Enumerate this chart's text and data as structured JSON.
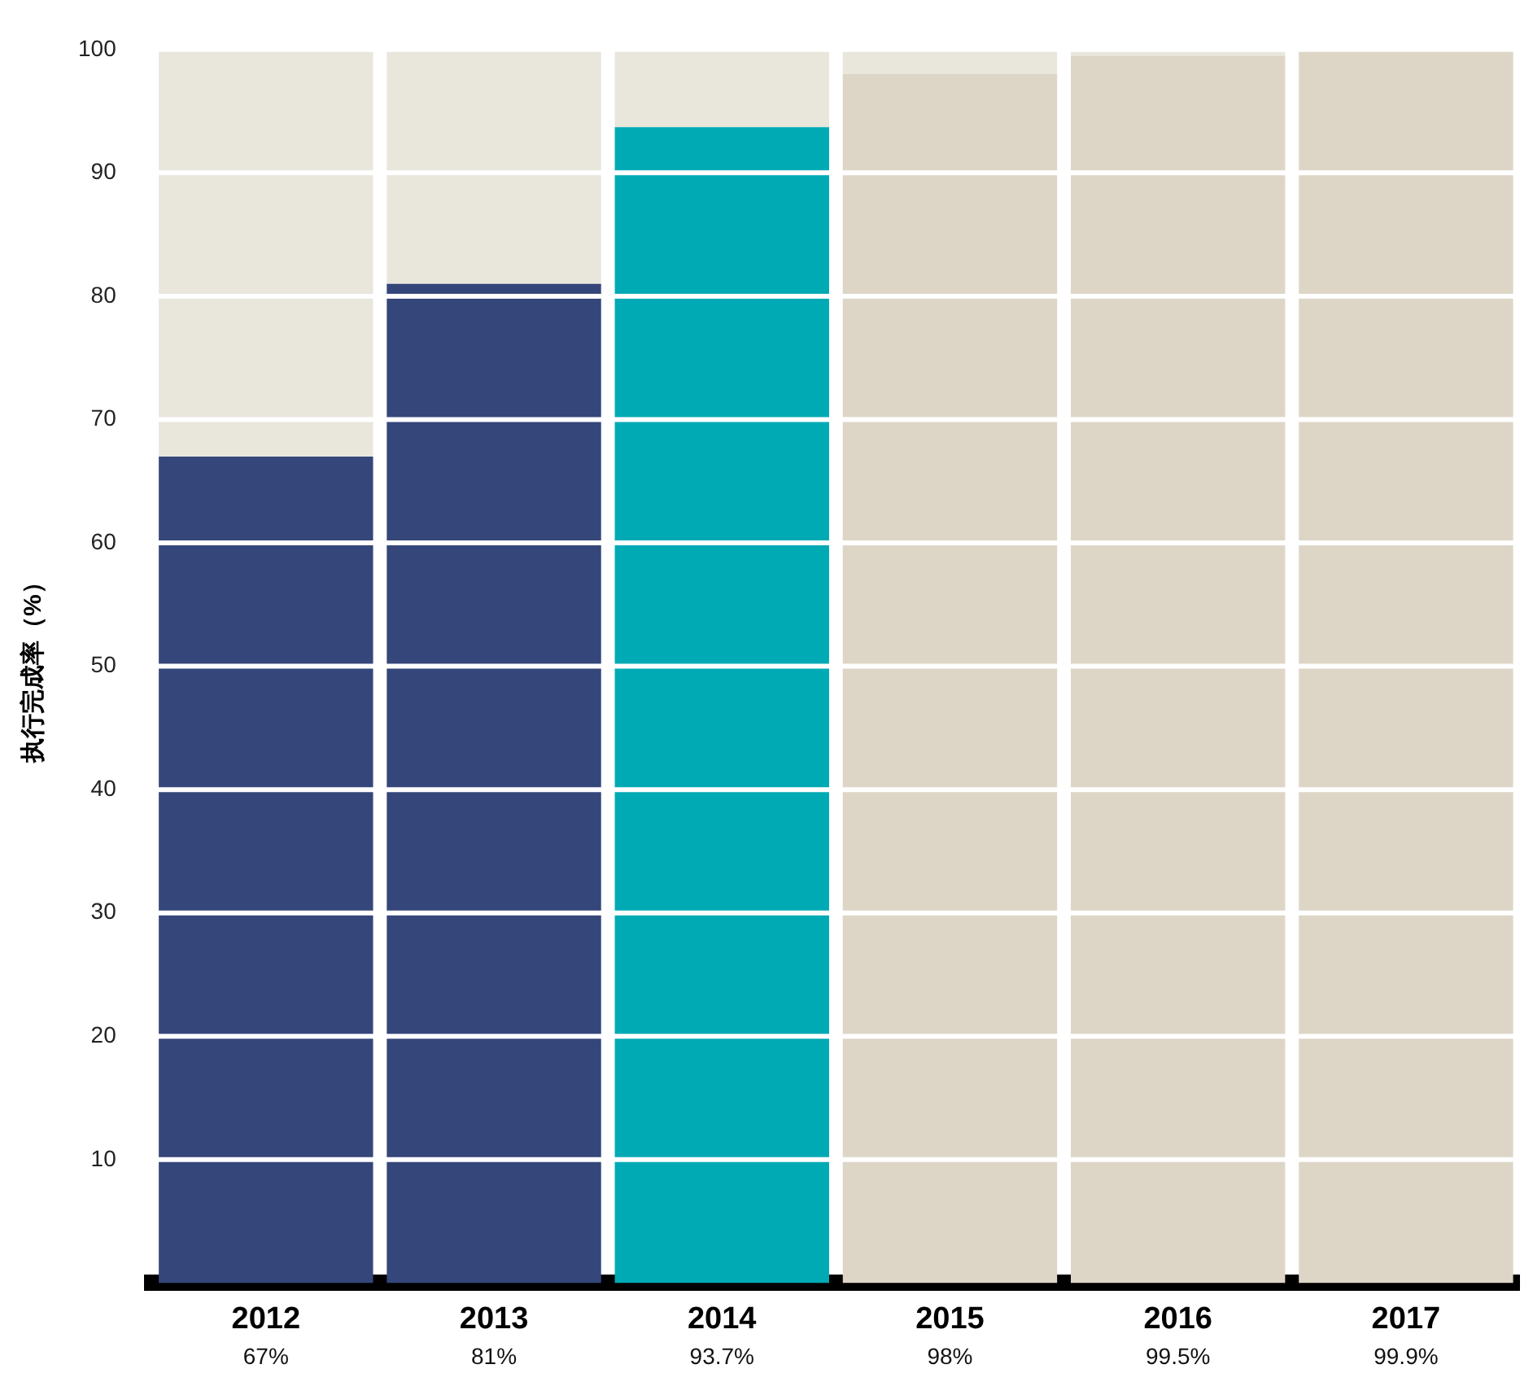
{
  "chart_data": {
    "type": "bar",
    "ylabel": "执行完成率（%）",
    "categories": [
      "2012",
      "2013",
      "2014",
      "2015",
      "2016",
      "2017"
    ],
    "series": [
      {
        "colors": [
          "#35467a",
          "#35467a",
          "#00aab5",
          "#ddd6c6",
          "#ddd6c6",
          "#ddd6c6"
        ],
        "values": [
          67,
          81,
          93.7,
          98,
          99.5,
          99.9
        ],
        "value_labels": [
          "67%",
          "81%",
          "93.7%",
          "98%",
          "99.5%",
          "99.9%"
        ]
      },
      {
        "color": "#e9e6dc",
        "values": [
          33,
          19,
          6.3,
          2,
          0.5,
          0.1
        ]
      }
    ],
    "stacked": true,
    "ylim": [
      0,
      100
    ],
    "yticks": [
      10,
      20,
      30,
      40,
      50,
      60,
      70,
      80,
      90,
      100
    ],
    "grid": "y",
    "legend": false
  }
}
